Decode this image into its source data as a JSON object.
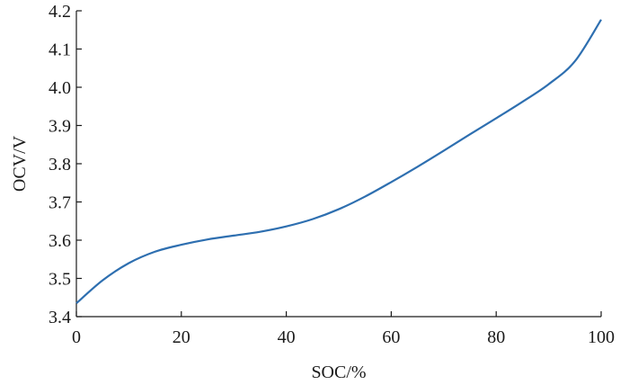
{
  "chart_data": {
    "type": "line",
    "title": "",
    "xlabel": "SOC/%",
    "ylabel": "OCV/V",
    "xlim": [
      0,
      100
    ],
    "ylim": [
      3.4,
      4.2
    ],
    "xticks": [
      "0",
      "20",
      "40",
      "60",
      "80",
      "100"
    ],
    "yticks": [
      "3.4",
      "3.5",
      "3.6",
      "3.7",
      "3.8",
      "3.9",
      "4.0",
      "4.1",
      "4.2"
    ],
    "grid": false,
    "line_color": "#2e6fb0",
    "series": [
      {
        "x": [
          0,
          5,
          10,
          15,
          20,
          25,
          30,
          35,
          40,
          45,
          50,
          55,
          60,
          65,
          70,
          75,
          80,
          85,
          90,
          95,
          100
        ],
        "y": [
          3.435,
          3.495,
          3.54,
          3.57,
          3.588,
          3.602,
          3.612,
          3.622,
          3.636,
          3.655,
          3.681,
          3.714,
          3.752,
          3.792,
          3.834,
          3.877,
          3.919,
          3.962,
          4.008,
          4.068,
          4.177
        ]
      }
    ]
  }
}
